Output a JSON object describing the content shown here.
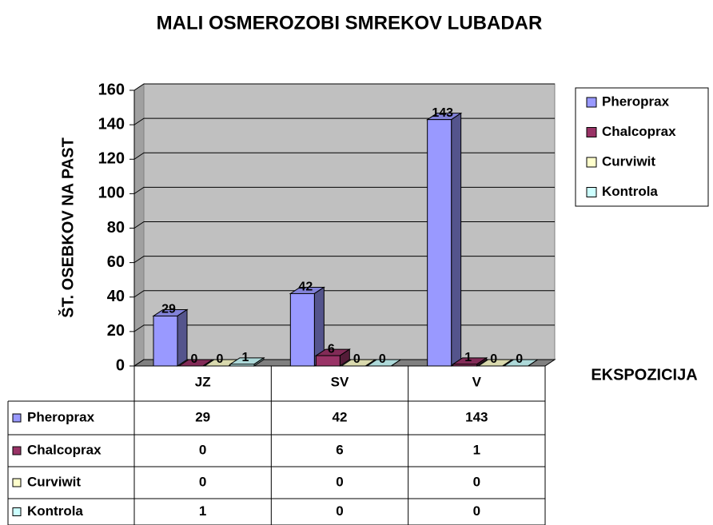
{
  "chart_data": {
    "type": "bar3d",
    "title": "MALI OSMEROZOBI SMREKOV LUBADAR",
    "y_label": "ŠT. OSEBKOV NA PAST",
    "x_label": "EKSPOZICIJA",
    "categories": [
      "JZ",
      "SV",
      "V"
    ],
    "series": [
      {
        "name": "Pheroprax",
        "color": "#9999ff",
        "values": [
          29,
          42,
          143
        ]
      },
      {
        "name": "Chalcoprax",
        "color": "#993366",
        "values": [
          0,
          6,
          1
        ]
      },
      {
        "name": "Curviwit",
        "color": "#ffffcc",
        "values": [
          0,
          0,
          0
        ]
      },
      {
        "name": "Kontrola",
        "color": "#ccffff",
        "values": [
          1,
          0,
          0
        ]
      }
    ],
    "ylim": [
      0,
      160
    ],
    "yticks": [
      0,
      20,
      40,
      60,
      80,
      100,
      120,
      140,
      160
    ],
    "grid": true,
    "legend": "right",
    "data_table": true
  }
}
